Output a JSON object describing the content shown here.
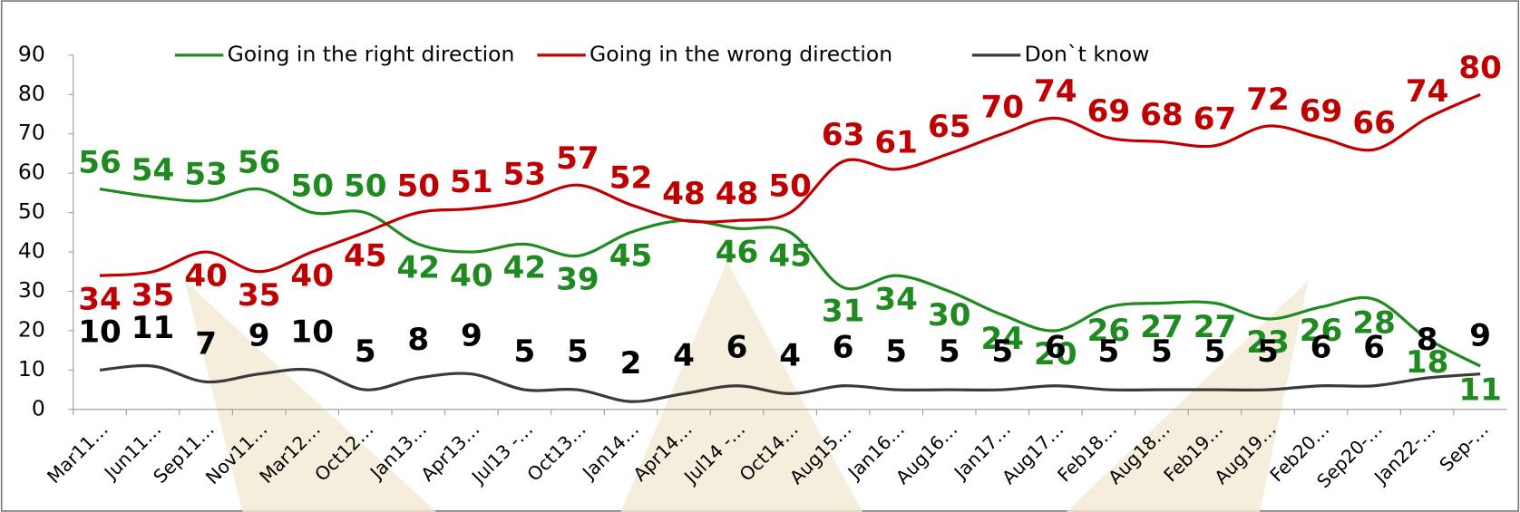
{
  "chart_data": {
    "type": "line",
    "categories": [
      "Mar11…",
      "Jun11…",
      "Sep11…",
      "Nov11…",
      "Mar12…",
      "Oct12…",
      "Jan13…",
      "Apr13…",
      "Jul13 -…",
      "Oct13…",
      "Jan14…",
      "Apr14…",
      "Jul14 -…",
      "Oct14…",
      "Aug15…",
      "Jan16…",
      "Aug16…",
      "Jan17…",
      "Aug17…",
      "Feb18…",
      "Aug18…",
      "Feb19…",
      "Aug19…",
      "Feb20…",
      "Sep20-…",
      "Jan22-…",
      "Sep-…"
    ],
    "series": [
      {
        "name": "Going in the right direction",
        "color": "#1f8a1f",
        "values": [
          56,
          54,
          53,
          56,
          50,
          50,
          42,
          40,
          42,
          39,
          45,
          48,
          46,
          45,
          31,
          34,
          30,
          24,
          20,
          26,
          27,
          27,
          23,
          26,
          28,
          18,
          11
        ]
      },
      {
        "name": "Going in the wrong direction",
        "color": "#c00000",
        "values": [
          34,
          35,
          40,
          35,
          40,
          45,
          50,
          51,
          53,
          57,
          52,
          48,
          48,
          50,
          63,
          61,
          65,
          70,
          74,
          69,
          68,
          67,
          72,
          69,
          66,
          74,
          80
        ]
      },
      {
        "name": "Don`t know",
        "color": "#3a3a3a",
        "values": [
          10,
          11,
          7,
          9,
          10,
          5,
          8,
          9,
          5,
          5,
          2,
          4,
          6,
          4,
          6,
          5,
          5,
          5,
          6,
          5,
          5,
          5,
          5,
          6,
          6,
          8,
          9
        ]
      }
    ],
    "ylim": [
      0,
      90
    ],
    "yticks": [
      0,
      10,
      20,
      30,
      40,
      50,
      60,
      70,
      80,
      90
    ]
  }
}
